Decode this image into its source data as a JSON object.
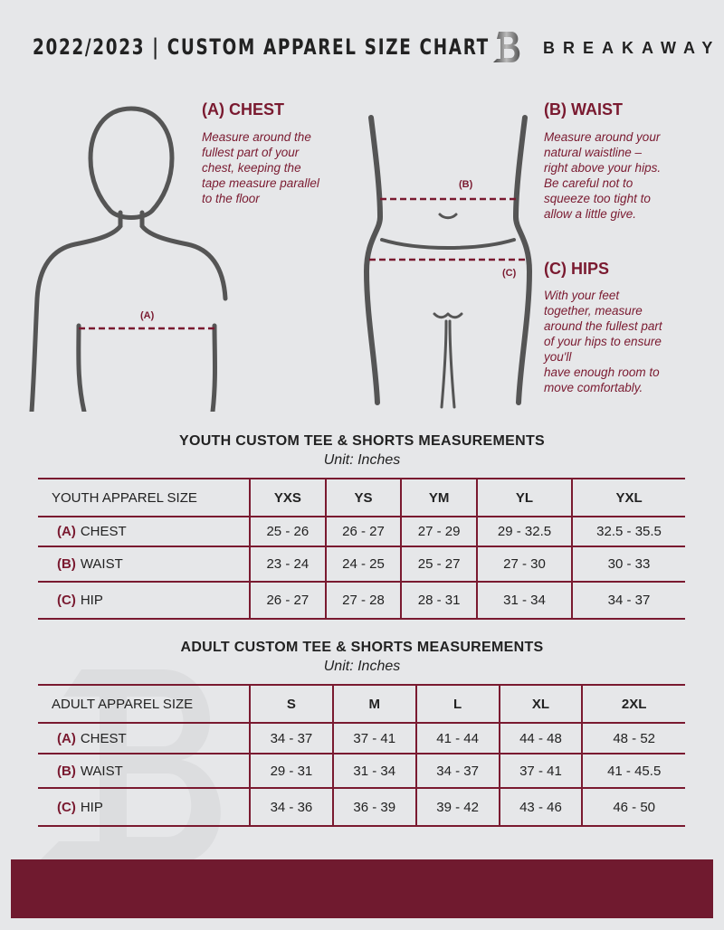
{
  "header": {
    "title": "2022/2023  |  CUSTOM APPAREL SIZE CHART",
    "brand": "BREAKAWAY"
  },
  "guide": {
    "chest": {
      "heading": "(A) CHEST",
      "text": [
        "Measure around the",
        "fullest part of your",
        "chest, keeping the",
        "tape measure parallel",
        "to the floor"
      ],
      "marker": "(A)"
    },
    "waist": {
      "heading": "(B) WAIST",
      "text": [
        "Measure around your",
        "natural waistline –",
        "right above your hips.",
        "Be careful not to",
        "squeeze too tight to",
        "allow a little give."
      ],
      "marker": "(B)"
    },
    "hips": {
      "heading": "(C) HIPS",
      "text": [
        "With your feet",
        "together, measure",
        "around the fullest part",
        "of your hips to ensure",
        "you'll",
        "have enough room to",
        "move comfortably."
      ],
      "marker": "(C)"
    }
  },
  "youth": {
    "title": "YOUTH CUSTOM TEE & SHORTS MEASUREMENTS",
    "unit": "Unit: Inches",
    "header": "YOUTH APPAREL SIZE",
    "sizes": [
      "YXS",
      "YS",
      "YM",
      "YL",
      "YXL"
    ],
    "rows": [
      {
        "tag": "(A)",
        "label": "CHEST",
        "values": [
          "25 - 26",
          "26 - 27",
          "27 - 29",
          "29 - 32.5",
          "32.5 - 35.5"
        ]
      },
      {
        "tag": "(B)",
        "label": "WAIST",
        "values": [
          "23 - 24",
          "24 - 25",
          "25 - 27",
          "27 - 30",
          "30 - 33"
        ]
      },
      {
        "tag": "(C)",
        "label": "HIP",
        "values": [
          "26 - 27",
          "27 - 28",
          "28 - 31",
          "31 - 34",
          "34 - 37"
        ]
      }
    ]
  },
  "adult": {
    "title": "ADULT CUSTOM TEE & SHORTS MEASUREMENTS",
    "unit": "Unit: Inches",
    "header": "ADULT APPAREL SIZE",
    "sizes": [
      "S",
      "M",
      "L",
      "XL",
      "2XL"
    ],
    "rows": [
      {
        "tag": "(A)",
        "label": "CHEST",
        "values": [
          "34 - 37",
          "37 - 41",
          "41 - 44",
          "44 - 48",
          "48 - 52"
        ]
      },
      {
        "tag": "(B)",
        "label": "WAIST",
        "values": [
          "29 - 31",
          "31 - 34",
          "34 - 37",
          "37 - 41",
          "41 - 45.5"
        ]
      },
      {
        "tag": "(C)",
        "label": "HIP",
        "values": [
          "34 - 36",
          "36 - 39",
          "39 - 42",
          "43 - 46",
          "46 - 50"
        ]
      }
    ]
  },
  "colors": {
    "accent": "#7a1a30",
    "background": "#e6e7e9",
    "footer": "#701a2f"
  }
}
